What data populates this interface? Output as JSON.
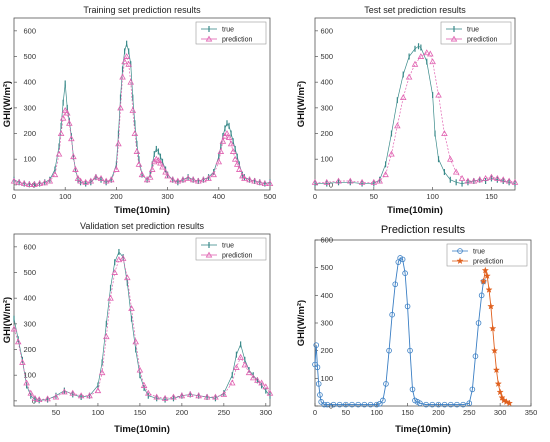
{
  "chart_data": [
    {
      "type": "line",
      "title": "Training set prediction results",
      "ylabel": "GHI(W/m²)",
      "xlabel": "Time(10min)",
      "xlim": [
        0,
        500
      ],
      "ylim": [
        -20,
        650
      ],
      "xticks": [
        0,
        100,
        200,
        300,
        400,
        500
      ],
      "yticks": [
        0,
        100,
        200,
        300,
        400,
        500,
        600
      ],
      "legend_position": "top-right",
      "series": [
        {
          "name": "true",
          "color": "#3a8a8a",
          "marker": "vertical-tick",
          "x": [
            0,
            10,
            20,
            30,
            40,
            50,
            60,
            70,
            80,
            88,
            92,
            96,
            100,
            104,
            108,
            112,
            116,
            120,
            125,
            130,
            140,
            150,
            160,
            170,
            180,
            190,
            200,
            204,
            208,
            212,
            216,
            220,
            224,
            228,
            232,
            236,
            240,
            244,
            250,
            260,
            266,
            270,
            274,
            278,
            282,
            286,
            290,
            296,
            300,
            310,
            320,
            330,
            340,
            350,
            360,
            370,
            380,
            390,
            400,
            404,
            408,
            412,
            416,
            420,
            424,
            428,
            432,
            436,
            440,
            446,
            450,
            460,
            470,
            480,
            490,
            500
          ],
          "values": [
            20,
            10,
            5,
            2,
            2,
            5,
            10,
            20,
            60,
            150,
            230,
            320,
            395,
            300,
            250,
            190,
            110,
            60,
            20,
            10,
            5,
            10,
            30,
            20,
            10,
            20,
            80,
            200,
            340,
            450,
            520,
            550,
            520,
            470,
            340,
            240,
            160,
            100,
            40,
            20,
            40,
            80,
            120,
            140,
            130,
            110,
            90,
            60,
            40,
            20,
            10,
            20,
            30,
            20,
            15,
            20,
            30,
            50,
            110,
            150,
            190,
            220,
            240,
            230,
            200,
            170,
            140,
            110,
            80,
            40,
            30,
            20,
            15,
            10,
            5,
            10
          ]
        },
        {
          "name": "prediction",
          "color": "#e060b0",
          "marker": "triangle",
          "x": [
            0,
            10,
            20,
            30,
            40,
            50,
            60,
            70,
            80,
            88,
            92,
            96,
            100,
            104,
            108,
            112,
            116,
            120,
            125,
            130,
            140,
            150,
            160,
            170,
            180,
            190,
            200,
            204,
            208,
            212,
            216,
            220,
            224,
            228,
            232,
            236,
            240,
            244,
            250,
            260,
            266,
            270,
            274,
            278,
            282,
            286,
            290,
            296,
            300,
            310,
            320,
            330,
            340,
            350,
            360,
            370,
            380,
            390,
            400,
            404,
            408,
            412,
            416,
            420,
            424,
            428,
            432,
            436,
            440,
            446,
            450,
            460,
            470,
            480,
            490,
            500
          ],
          "values": [
            15,
            10,
            5,
            2,
            2,
            5,
            8,
            15,
            40,
            120,
            200,
            260,
            290,
            280,
            240,
            180,
            110,
            60,
            25,
            15,
            10,
            15,
            30,
            25,
            15,
            20,
            60,
            160,
            300,
            420,
            480,
            500,
            470,
            400,
            290,
            200,
            130,
            80,
            40,
            20,
            30,
            60,
            90,
            100,
            95,
            85,
            70,
            50,
            35,
            20,
            15,
            20,
            25,
            20,
            15,
            20,
            25,
            40,
            90,
            130,
            170,
            190,
            200,
            185,
            160,
            130,
            100,
            80,
            60,
            35,
            25,
            20,
            15,
            10,
            5,
            5
          ]
        }
      ]
    },
    {
      "type": "line",
      "title": "Test set prediction results",
      "ylabel": "GHI(W/m²)",
      "xlabel": "Time(10min)",
      "xlim": [
        0,
        170
      ],
      "ylim": [
        -20,
        650
      ],
      "xticks": [
        0,
        50,
        100,
        150
      ],
      "yticks": [
        0,
        100,
        200,
        300,
        400,
        500,
        600
      ],
      "legend_position": "top-right",
      "series": [
        {
          "name": "true",
          "color": "#3a8a8a",
          "marker": "vertical-tick",
          "x": [
            0,
            10,
            20,
            30,
            40,
            50,
            55,
            60,
            65,
            70,
            75,
            80,
            85,
            88,
            90,
            95,
            100,
            102,
            105,
            110,
            115,
            120,
            125,
            130,
            135,
            140,
            145,
            150,
            155,
            160,
            165,
            170
          ],
          "values": [
            5,
            5,
            10,
            10,
            5,
            5,
            20,
            80,
            200,
            330,
            430,
            500,
            530,
            540,
            535,
            480,
            350,
            200,
            100,
            50,
            20,
            10,
            5,
            10,
            15,
            20,
            15,
            25,
            20,
            15,
            10,
            5
          ],
          "_comment": "true"
        },
        {
          "name": "prediction",
          "color": "#e060b0",
          "marker": "triangle",
          "x": [
            0,
            10,
            20,
            30,
            40,
            50,
            55,
            60,
            65,
            70,
            75,
            80,
            85,
            90,
            95,
            98,
            100,
            105,
            110,
            115,
            120,
            125,
            130,
            135,
            140,
            145,
            150,
            155,
            160,
            165,
            170
          ],
          "values": [
            10,
            10,
            15,
            15,
            10,
            10,
            15,
            40,
            120,
            230,
            340,
            420,
            470,
            500,
            515,
            510,
            480,
            350,
            200,
            100,
            50,
            25,
            15,
            15,
            20,
            25,
            30,
            25,
            20,
            15,
            10
          ]
        }
      ]
    },
    {
      "type": "line",
      "title": "Validation set prediction results",
      "ylabel": "GHI(W/m²)",
      "xlabel": "Time(10min)",
      "xlim": [
        0,
        305
      ],
      "ylim": [
        -20,
        650
      ],
      "xticks": [
        50,
        100,
        150,
        200,
        250,
        300
      ],
      "yticks": [
        0,
        100,
        200,
        300,
        400,
        500,
        600
      ],
      "legend_position": "top-right",
      "series": [
        {
          "name": "true",
          "color": "#3a8a8a",
          "marker": "vertical-tick",
          "x": [
            0,
            5,
            10,
            15,
            20,
            25,
            30,
            40,
            50,
            60,
            70,
            80,
            90,
            100,
            105,
            110,
            115,
            120,
            125,
            130,
            135,
            140,
            145,
            150,
            155,
            160,
            170,
            180,
            190,
            200,
            210,
            220,
            230,
            240,
            250,
            260,
            265,
            270,
            275,
            280,
            285,
            290,
            295,
            300,
            305
          ],
          "values": [
            320,
            240,
            160,
            60,
            20,
            5,
            2,
            5,
            20,
            40,
            25,
            15,
            20,
            60,
            150,
            300,
            440,
            540,
            580,
            560,
            460,
            320,
            200,
            100,
            50,
            20,
            10,
            5,
            10,
            20,
            25,
            20,
            15,
            10,
            30,
            100,
            180,
            220,
            160,
            120,
            100,
            80,
            60,
            40,
            20
          ]
        },
        {
          "name": "prediction",
          "color": "#e060b0",
          "marker": "triangle",
          "x": [
            0,
            5,
            10,
            15,
            20,
            25,
            30,
            40,
            50,
            60,
            70,
            80,
            90,
            100,
            105,
            110,
            115,
            120,
            125,
            130,
            135,
            140,
            145,
            150,
            155,
            160,
            170,
            180,
            190,
            200,
            210,
            220,
            230,
            240,
            250,
            260,
            265,
            270,
            275,
            280,
            285,
            290,
            295,
            300,
            305
          ],
          "values": [
            280,
            230,
            150,
            70,
            30,
            10,
            5,
            8,
            15,
            35,
            30,
            20,
            20,
            40,
            110,
            250,
            400,
            500,
            550,
            555,
            480,
            360,
            230,
            120,
            60,
            30,
            15,
            10,
            15,
            20,
            25,
            20,
            15,
            15,
            25,
            70,
            130,
            170,
            140,
            110,
            90,
            80,
            70,
            55,
            30
          ]
        }
      ]
    },
    {
      "type": "line",
      "title": "Prediction results",
      "ylabel": "GHI(W/m²)",
      "xlabel": "Time(10min)",
      "xlim": [
        0,
        350
      ],
      "ylim": [
        0,
        600
      ],
      "xticks": [
        0,
        50,
        100,
        150,
        200,
        250,
        300,
        350
      ],
      "yticks": [
        0,
        100,
        200,
        300,
        400,
        500,
        600
      ],
      "legend_position": "top-right",
      "series": [
        {
          "name": "true",
          "color": "#3b7fc4",
          "marker": "circle",
          "x": [
            0,
            2,
            4,
            6,
            8,
            10,
            15,
            20,
            30,
            40,
            50,
            60,
            70,
            80,
            90,
            100,
            105,
            110,
            115,
            120,
            125,
            130,
            135,
            138,
            142,
            146,
            150,
            154,
            158,
            162,
            166,
            170,
            180,
            190,
            200,
            210,
            220,
            230,
            240,
            250,
            255,
            260,
            265,
            270,
            273
          ],
          "values": [
            150,
            220,
            140,
            80,
            40,
            15,
            5,
            5,
            5,
            5,
            5,
            5,
            5,
            5,
            5,
            5,
            8,
            20,
            80,
            200,
            330,
            440,
            520,
            535,
            530,
            480,
            360,
            200,
            60,
            20,
            15,
            10,
            5,
            5,
            5,
            5,
            5,
            5,
            5,
            10,
            60,
            180,
            300,
            400,
            450
          ]
        },
        {
          "name": "prediction",
          "color": "#e0601e",
          "marker": "star",
          "x": [
            273,
            276,
            279,
            282,
            285,
            288,
            291,
            294,
            297,
            300,
            303,
            306,
            310,
            315
          ],
          "values": [
            450,
            490,
            470,
            420,
            360,
            280,
            200,
            130,
            80,
            50,
            30,
            20,
            15,
            10
          ]
        }
      ]
    }
  ]
}
